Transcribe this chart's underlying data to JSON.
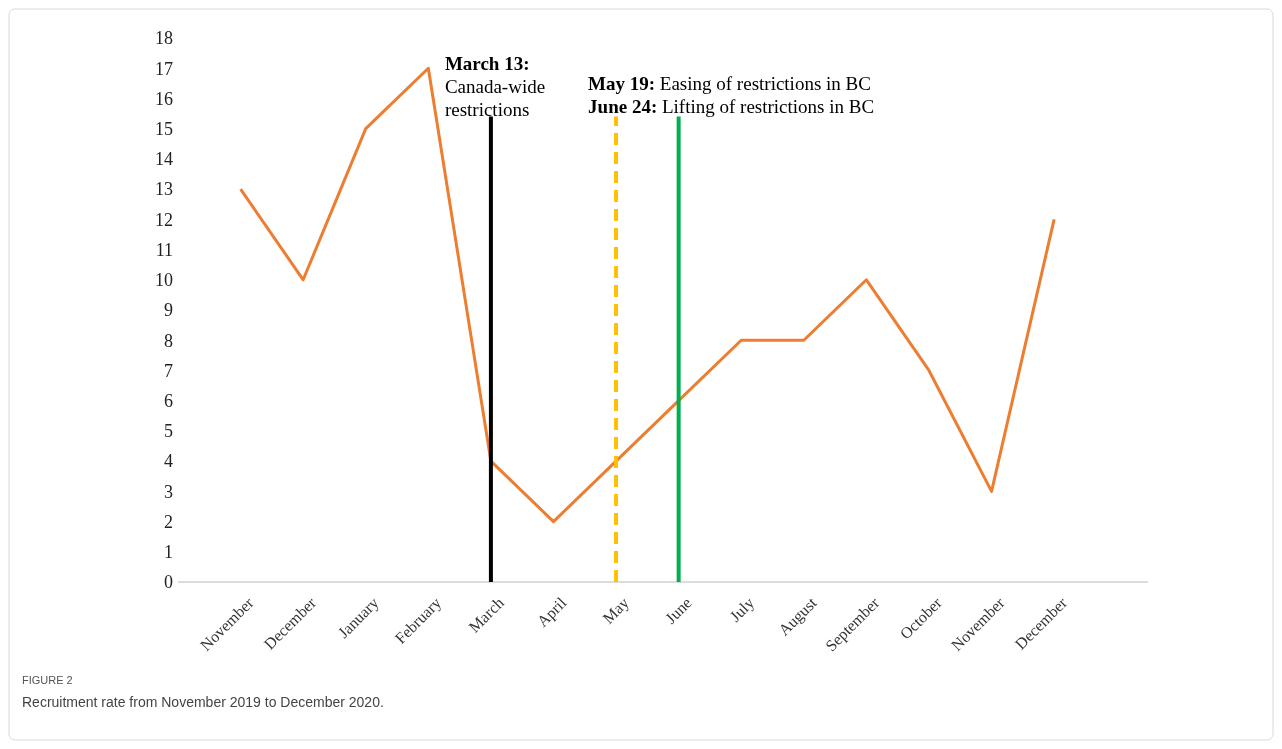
{
  "chart_data": {
    "type": "line",
    "categories": [
      "November",
      "December",
      "January",
      "February",
      "March",
      "April",
      "May",
      "June",
      "July",
      "August",
      "September",
      "October",
      "November",
      "December"
    ],
    "series": [
      {
        "color": "#ed7d31",
        "values": [
          13,
          10,
          15,
          17,
          4,
          2,
          4,
          6,
          8,
          8,
          10,
          7,
          3,
          12
        ]
      }
    ],
    "ylim": [
      0,
      18
    ],
    "yticks": [
      0,
      1,
      2,
      3,
      4,
      5,
      6,
      7,
      8,
      9,
      10,
      11,
      12,
      13,
      14,
      15,
      16,
      17,
      18
    ],
    "grid": false,
    "marker": "none",
    "line_style": "solid",
    "ref_lines": [
      {
        "axis": "x",
        "value": "March",
        "label": "March 13: Canada-wide restrictions",
        "color": "#000000",
        "line_style": "solid"
      },
      {
        "axis": "x",
        "value": "May",
        "label": "May 19: Easing of restrictions in BC",
        "color": "#ffc000",
        "line_style": "dashed"
      },
      {
        "axis": "x",
        "value": "June",
        "label": "June 24: Lifting of restrictions in BC",
        "color": "#00b050",
        "line_style": "solid"
      }
    ],
    "annotations": [
      "FIGURE 2",
      "Recruitment rate from November 2019 to December 2020."
    ]
  }
}
